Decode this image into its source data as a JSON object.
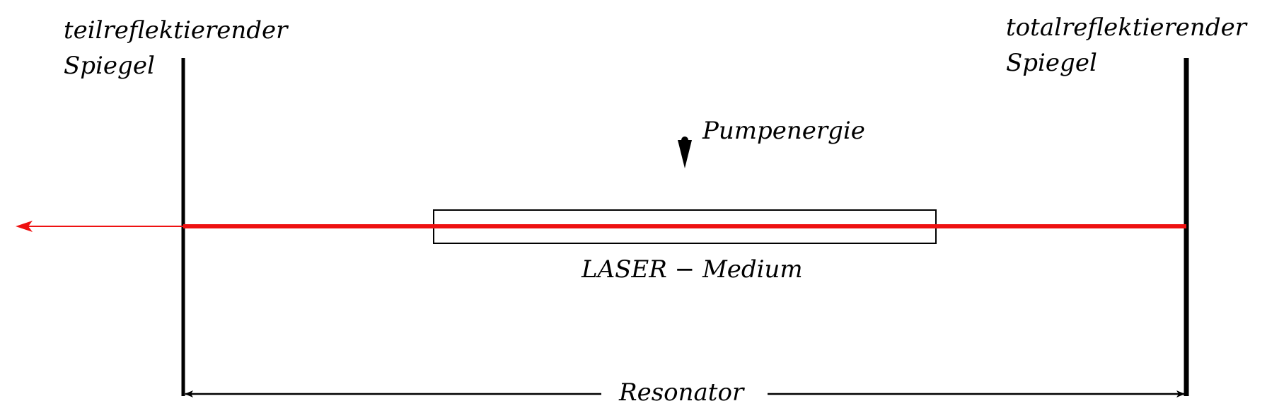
{
  "labels": {
    "left_mirror_line1": "teilreflektierender",
    "left_mirror_line2": "Spiegel",
    "right_mirror_line1": "totalreflektierender",
    "right_mirror_line2": "Spiegel",
    "pump": "Pumpenergie",
    "medium": "LASER − Medium",
    "resonator": "Resonator"
  },
  "colors": {
    "beam": "#ee1111",
    "ink": "#000000"
  }
}
